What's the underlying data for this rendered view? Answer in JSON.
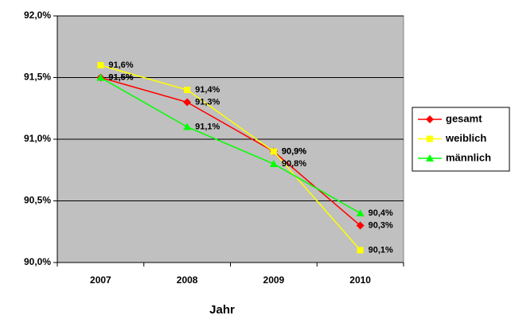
{
  "chart_data": {
    "type": "line",
    "x_label": "Jahr",
    "categories": [
      "2007",
      "2008",
      "2009",
      "2010"
    ],
    "series": [
      {
        "name": "gesamt",
        "color": "#ff0000",
        "marker": "diamond",
        "values": [
          91.5,
          91.3,
          90.9,
          90.3
        ],
        "value_labels": [
          "91,5%",
          "91,3%",
          "90,9%",
          "90,3%"
        ]
      },
      {
        "name": "weiblich",
        "color": "#ffff00",
        "marker": "square",
        "values": [
          91.6,
          91.4,
          90.9,
          90.1
        ],
        "value_labels": [
          "91,6%",
          "91,4%",
          "90,9%",
          "90,1%"
        ]
      },
      {
        "name": "männlich",
        "color": "#00ff00",
        "marker": "triangle",
        "values": [
          91.5,
          91.1,
          90.8,
          90.4
        ],
        "value_labels": [
          "91,5%",
          "91,1%",
          "90,8%",
          "90,4%"
        ]
      }
    ],
    "ylim": [
      90.0,
      92.0
    ],
    "yticks": [
      {
        "value": 90.0,
        "label": "90,0%"
      },
      {
        "value": 90.5,
        "label": "90,5%"
      },
      {
        "value": 91.0,
        "label": "91,0%"
      },
      {
        "value": 91.5,
        "label": "91,5%"
      },
      {
        "value": 92.0,
        "label": "92,0%"
      }
    ],
    "grid": true,
    "legend": "right",
    "plot_background": "#c0c0c0"
  }
}
